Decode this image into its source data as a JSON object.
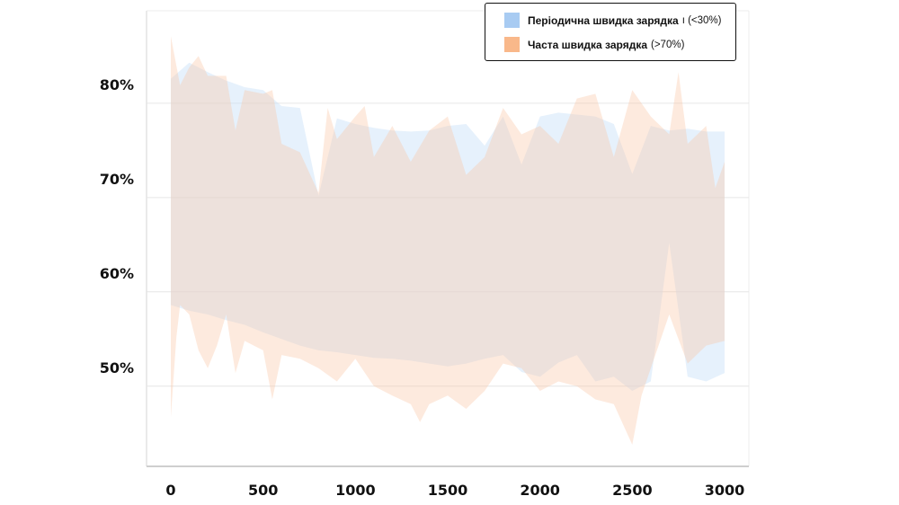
{
  "chart_data": {
    "type": "area",
    "title": "",
    "xlabel": "",
    "ylabel": "",
    "xlim": [
      0,
      3000
    ],
    "ylim": [
      41.5,
      89.8
    ],
    "x_ticks": [
      {
        "value": 0,
        "label": "0"
      },
      {
        "value": 500,
        "label": "500"
      },
      {
        "value": 1000,
        "label": "1000"
      },
      {
        "value": 1500,
        "label": "1500"
      },
      {
        "value": 2000,
        "label": "2000"
      },
      {
        "value": 2500,
        "label": "2500"
      },
      {
        "value": 3000,
        "label": "3000"
      }
    ],
    "y_ticks": [
      {
        "value": 80,
        "label": "80%"
      },
      {
        "value": 70,
        "label": "70%"
      },
      {
        "value": 60,
        "label": "60%"
      },
      {
        "value": 50,
        "label": "50%"
      }
    ],
    "grid": true,
    "legend_position": "top-right",
    "series": [
      {
        "name": "Періодична швидка зарядка",
        "note": "ı (<30%)",
        "color": "#a8cbf2",
        "upper": {
          "x": [
            0,
            100,
            200,
            300,
            400,
            500,
            600,
            700,
            800,
            900,
            1000,
            1100,
            1200,
            1300,
            1400,
            1500,
            1600,
            1700,
            1800,
            1900,
            2000,
            2100,
            2200,
            2300,
            2400,
            2500,
            2600,
            2700,
            2800,
            2900,
            3000
          ],
          "y": [
            82.6,
            84.3,
            83.3,
            82.4,
            81.7,
            81.4,
            79.7,
            79.5,
            70.2,
            78.4,
            77.8,
            77.4,
            77.1,
            77.0,
            77.1,
            77.6,
            77.8,
            75.5,
            78.6,
            73.5,
            78.6,
            79.0,
            78.8,
            78.6,
            77.8,
            72.5,
            77.6,
            77.1,
            77.3,
            77.0,
            77.0
          ]
        },
        "lower": {
          "x": [
            0,
            100,
            200,
            300,
            400,
            500,
            600,
            700,
            800,
            900,
            1000,
            1100,
            1200,
            1300,
            1400,
            1500,
            1600,
            1700,
            1800,
            1900,
            2000,
            2100,
            2200,
            2300,
            2400,
            2500,
            2600,
            2700,
            2800,
            2900,
            3000
          ],
          "y": [
            58.6,
            58.0,
            57.6,
            57.0,
            56.5,
            55.7,
            55.0,
            54.3,
            53.8,
            53.6,
            53.3,
            53.0,
            52.9,
            52.7,
            52.4,
            52.1,
            52.4,
            52.9,
            53.3,
            51.5,
            51.0,
            52.5,
            53.3,
            50.5,
            51.0,
            49.5,
            50.5,
            65.2,
            51.0,
            50.5,
            51.4
          ]
        }
      },
      {
        "name": "Часта швидка зарядка",
        "note": "(>70%)",
        "color": "#f9b88a",
        "upper": {
          "x": [
            0,
            50,
            100,
            150,
            200,
            300,
            350,
            400,
            500,
            550,
            600,
            700,
            800,
            850,
            900,
            1000,
            1050,
            1100,
            1200,
            1300,
            1400,
            1500,
            1600,
            1700,
            1800,
            1900,
            2000,
            2100,
            2200,
            2300,
            2400,
            2500,
            2600,
            2700,
            2750,
            2800,
            2900,
            2950,
            3000
          ],
          "y": [
            87.1,
            81.9,
            83.8,
            85.0,
            82.9,
            82.9,
            77.1,
            81.4,
            81.0,
            81.4,
            75.7,
            74.8,
            70.5,
            79.5,
            76.2,
            78.6,
            79.7,
            74.3,
            77.6,
            73.8,
            77.1,
            78.6,
            72.4,
            74.3,
            79.5,
            76.7,
            77.6,
            75.7,
            80.5,
            81.0,
            74.3,
            81.4,
            78.6,
            76.7,
            83.3,
            75.7,
            77.6,
            71.0,
            73.8
          ]
        },
        "lower": {
          "x": [
            0,
            30,
            50,
            100,
            150,
            200,
            250,
            300,
            350,
            400,
            500,
            550,
            600,
            700,
            800,
            900,
            1000,
            1100,
            1200,
            1300,
            1350,
            1400,
            1500,
            1600,
            1700,
            1800,
            1900,
            2000,
            2100,
            2200,
            2300,
            2400,
            2500,
            2550,
            2600,
            2700,
            2800,
            2900,
            3000
          ],
          "y": [
            46.7,
            55.2,
            58.6,
            57.6,
            53.8,
            51.9,
            54.3,
            57.6,
            51.4,
            54.8,
            53.8,
            48.6,
            53.3,
            52.9,
            51.9,
            50.5,
            52.9,
            50.0,
            49.0,
            48.1,
            46.2,
            48.1,
            49.0,
            47.6,
            49.5,
            52.4,
            51.9,
            49.5,
            50.5,
            50.0,
            48.6,
            48.1,
            43.8,
            49.0,
            51.9,
            57.6,
            52.4,
            54.3,
            54.8
          ]
        }
      }
    ]
  }
}
